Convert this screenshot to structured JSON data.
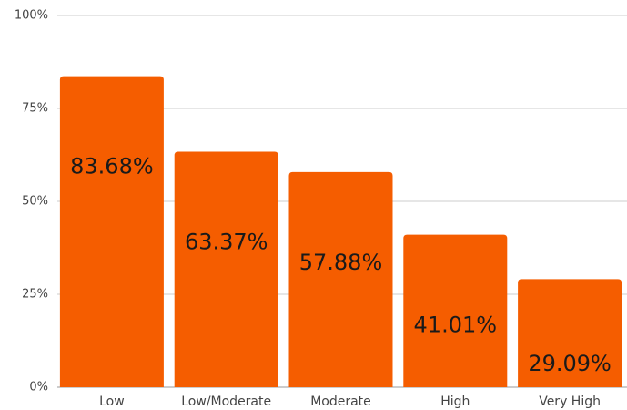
{
  "chart_data": {
    "type": "bar",
    "categories": [
      "Low",
      "Low/Moderate",
      "Moderate",
      "High",
      "Very High"
    ],
    "values": [
      83.68,
      63.37,
      57.88,
      41.01,
      29.09
    ],
    "value_labels": [
      "83.68%",
      "63.37%",
      "57.88%",
      "41.01%",
      "29.09%"
    ],
    "color": "#f55d00",
    "ylim": [
      0,
      100
    ],
    "yticks": [
      {
        "value": 0,
        "label": "0%"
      },
      {
        "value": 25,
        "label": "25%"
      },
      {
        "value": 50,
        "label": "50%"
      },
      {
        "value": 75,
        "label": "75%"
      },
      {
        "value": 100,
        "label": "100%"
      }
    ],
    "grid": true
  }
}
